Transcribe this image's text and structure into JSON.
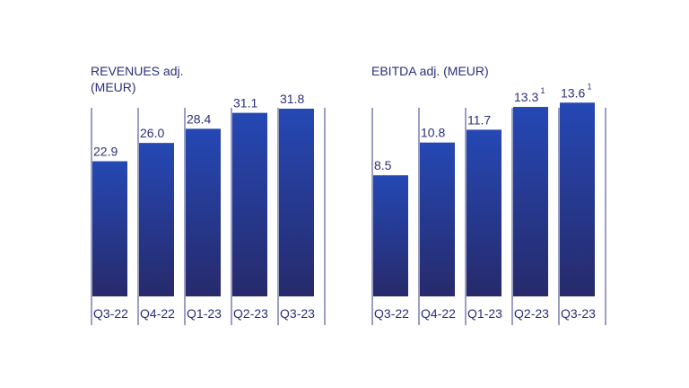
{
  "colors": {
    "bar_top": "#2548b4",
    "bar_bottom": "#272a6b",
    "text": "#2b2f7a",
    "divider": "#3a3f8a"
  },
  "chart_data": [
    {
      "type": "bar",
      "title": "REVENUES adj.\n(MEUR)",
      "categories": [
        "Q3-22",
        "Q4-22",
        "Q1-23",
        "Q2-23",
        "Q3-23"
      ],
      "values": [
        22.9,
        26.0,
        28.4,
        31.1,
        31.8
      ],
      "value_labels": [
        "22.9",
        "26.0",
        "28.4",
        "31.1",
        "31.8"
      ],
      "footnotes": [
        "",
        "",
        "",
        "",
        ""
      ],
      "ylim": [
        0,
        35
      ],
      "grid": false
    },
    {
      "type": "bar",
      "title": "EBITDA adj. (MEUR)",
      "categories": [
        "Q3-22",
        "Q4-22",
        "Q1-23",
        "Q2-23",
        "Q3-23"
      ],
      "values": [
        8.5,
        10.8,
        11.7,
        13.3,
        13.6
      ],
      "value_labels": [
        "8.5",
        "10.8",
        "11.7",
        "13.3",
        "13.6"
      ],
      "footnotes": [
        "",
        "",
        "",
        "1",
        "1"
      ],
      "ylim": [
        0,
        14.5
      ],
      "grid": false
    }
  ]
}
